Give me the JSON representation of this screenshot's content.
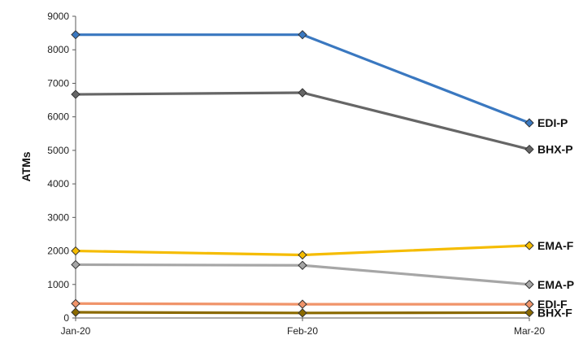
{
  "chart_data": {
    "type": "line",
    "categories": [
      "Jan-20",
      "Feb-20",
      "Mar-20"
    ],
    "ylabel": "ATMs",
    "ylim": [
      0,
      9000
    ],
    "yticks": [
      0,
      1000,
      2000,
      3000,
      4000,
      5000,
      6000,
      7000,
      8000,
      9000
    ],
    "grid": false,
    "legend": "end-of-line labels",
    "series": [
      {
        "name": "EDI-P",
        "values": [
          8450,
          8450,
          5820
        ],
        "color": "#3a78c0"
      },
      {
        "name": "BHX-P",
        "values": [
          6670,
          6720,
          5030
        ],
        "color": "#666666"
      },
      {
        "name": "EMA-F",
        "values": [
          2000,
          1880,
          2160
        ],
        "color": "#f5bc00"
      },
      {
        "name": "EMA-P",
        "values": [
          1590,
          1570,
          1000
        ],
        "color": "#a6a6a6"
      },
      {
        "name": "EDI-F",
        "values": [
          430,
          410,
          410
        ],
        "color": "#f0946a"
      },
      {
        "name": "BHX-F",
        "values": [
          170,
          150,
          160
        ],
        "color": "#8b6a00"
      }
    ]
  }
}
